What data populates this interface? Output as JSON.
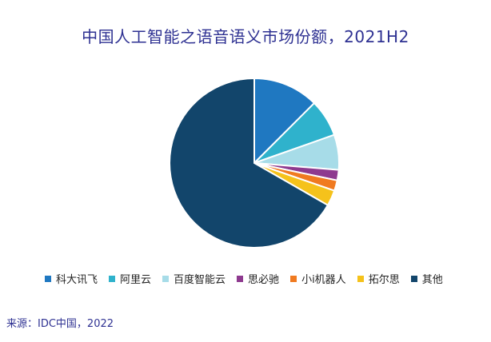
{
  "chart_data": {
    "type": "pie",
    "title": "中国人工智能之语音语义市场份额，2021H2",
    "categories": [
      "科大讯飞",
      "阿里云",
      "百度智能云",
      "思必驰",
      "小i机器人",
      "拓尔思",
      "其他"
    ],
    "values": [
      12.5,
      7.1,
      6.7,
      2.0,
      2.0,
      3.0,
      66.7
    ],
    "colors": [
      "#1f78c1",
      "#2fb2cc",
      "#a7dce8",
      "#8e3a8f",
      "#f07a20",
      "#f5c21b",
      "#12456b"
    ],
    "start_angle_deg": 0,
    "direction": "clockwise",
    "legend_position": "bottom"
  },
  "source": "来源：IDC中国，2022"
}
